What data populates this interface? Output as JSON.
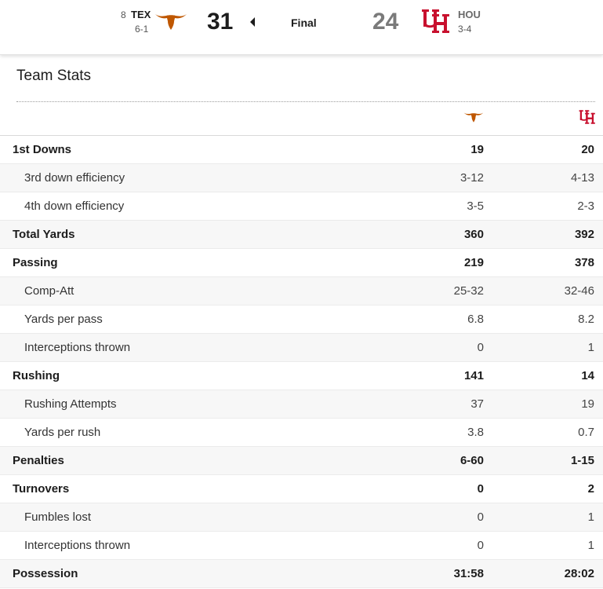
{
  "scoreboard": {
    "away": {
      "rank": "8",
      "abbr": "TEX",
      "record": "6-1",
      "score": "31",
      "color": "#bf5700",
      "logo_icon": "longhorn-icon"
    },
    "home": {
      "abbr": "HOU",
      "record": "3-4",
      "score": "24",
      "color": "#c8102e",
      "logo_icon": "uh-icon"
    },
    "status": "Final",
    "winner_indicator_icon": "caret-left-icon"
  },
  "section_title": "Team Stats",
  "rows": [
    {
      "label": "1st Downs",
      "a": "19",
      "b": "20",
      "level": "main"
    },
    {
      "label": "3rd down efficiency",
      "a": "3-12",
      "b": "4-13",
      "level": "sub"
    },
    {
      "label": "4th down efficiency",
      "a": "3-5",
      "b": "2-3",
      "level": "sub"
    },
    {
      "label": "Total Yards",
      "a": "360",
      "b": "392",
      "level": "main"
    },
    {
      "label": "Passing",
      "a": "219",
      "b": "378",
      "level": "main"
    },
    {
      "label": "Comp-Att",
      "a": "25-32",
      "b": "32-46",
      "level": "sub"
    },
    {
      "label": "Yards per pass",
      "a": "6.8",
      "b": "8.2",
      "level": "sub"
    },
    {
      "label": "Interceptions thrown",
      "a": "0",
      "b": "1",
      "level": "sub"
    },
    {
      "label": "Rushing",
      "a": "141",
      "b": "14",
      "level": "main"
    },
    {
      "label": "Rushing Attempts",
      "a": "37",
      "b": "19",
      "level": "sub"
    },
    {
      "label": "Yards per rush",
      "a": "3.8",
      "b": "0.7",
      "level": "sub"
    },
    {
      "label": "Penalties",
      "a": "6-60",
      "b": "1-15",
      "level": "main"
    },
    {
      "label": "Turnovers",
      "a": "0",
      "b": "2",
      "level": "main"
    },
    {
      "label": "Fumbles lost",
      "a": "0",
      "b": "1",
      "level": "sub"
    },
    {
      "label": "Interceptions thrown",
      "a": "0",
      "b": "1",
      "level": "sub"
    },
    {
      "label": "Possession",
      "a": "31:58",
      "b": "28:02",
      "level": "main"
    }
  ]
}
